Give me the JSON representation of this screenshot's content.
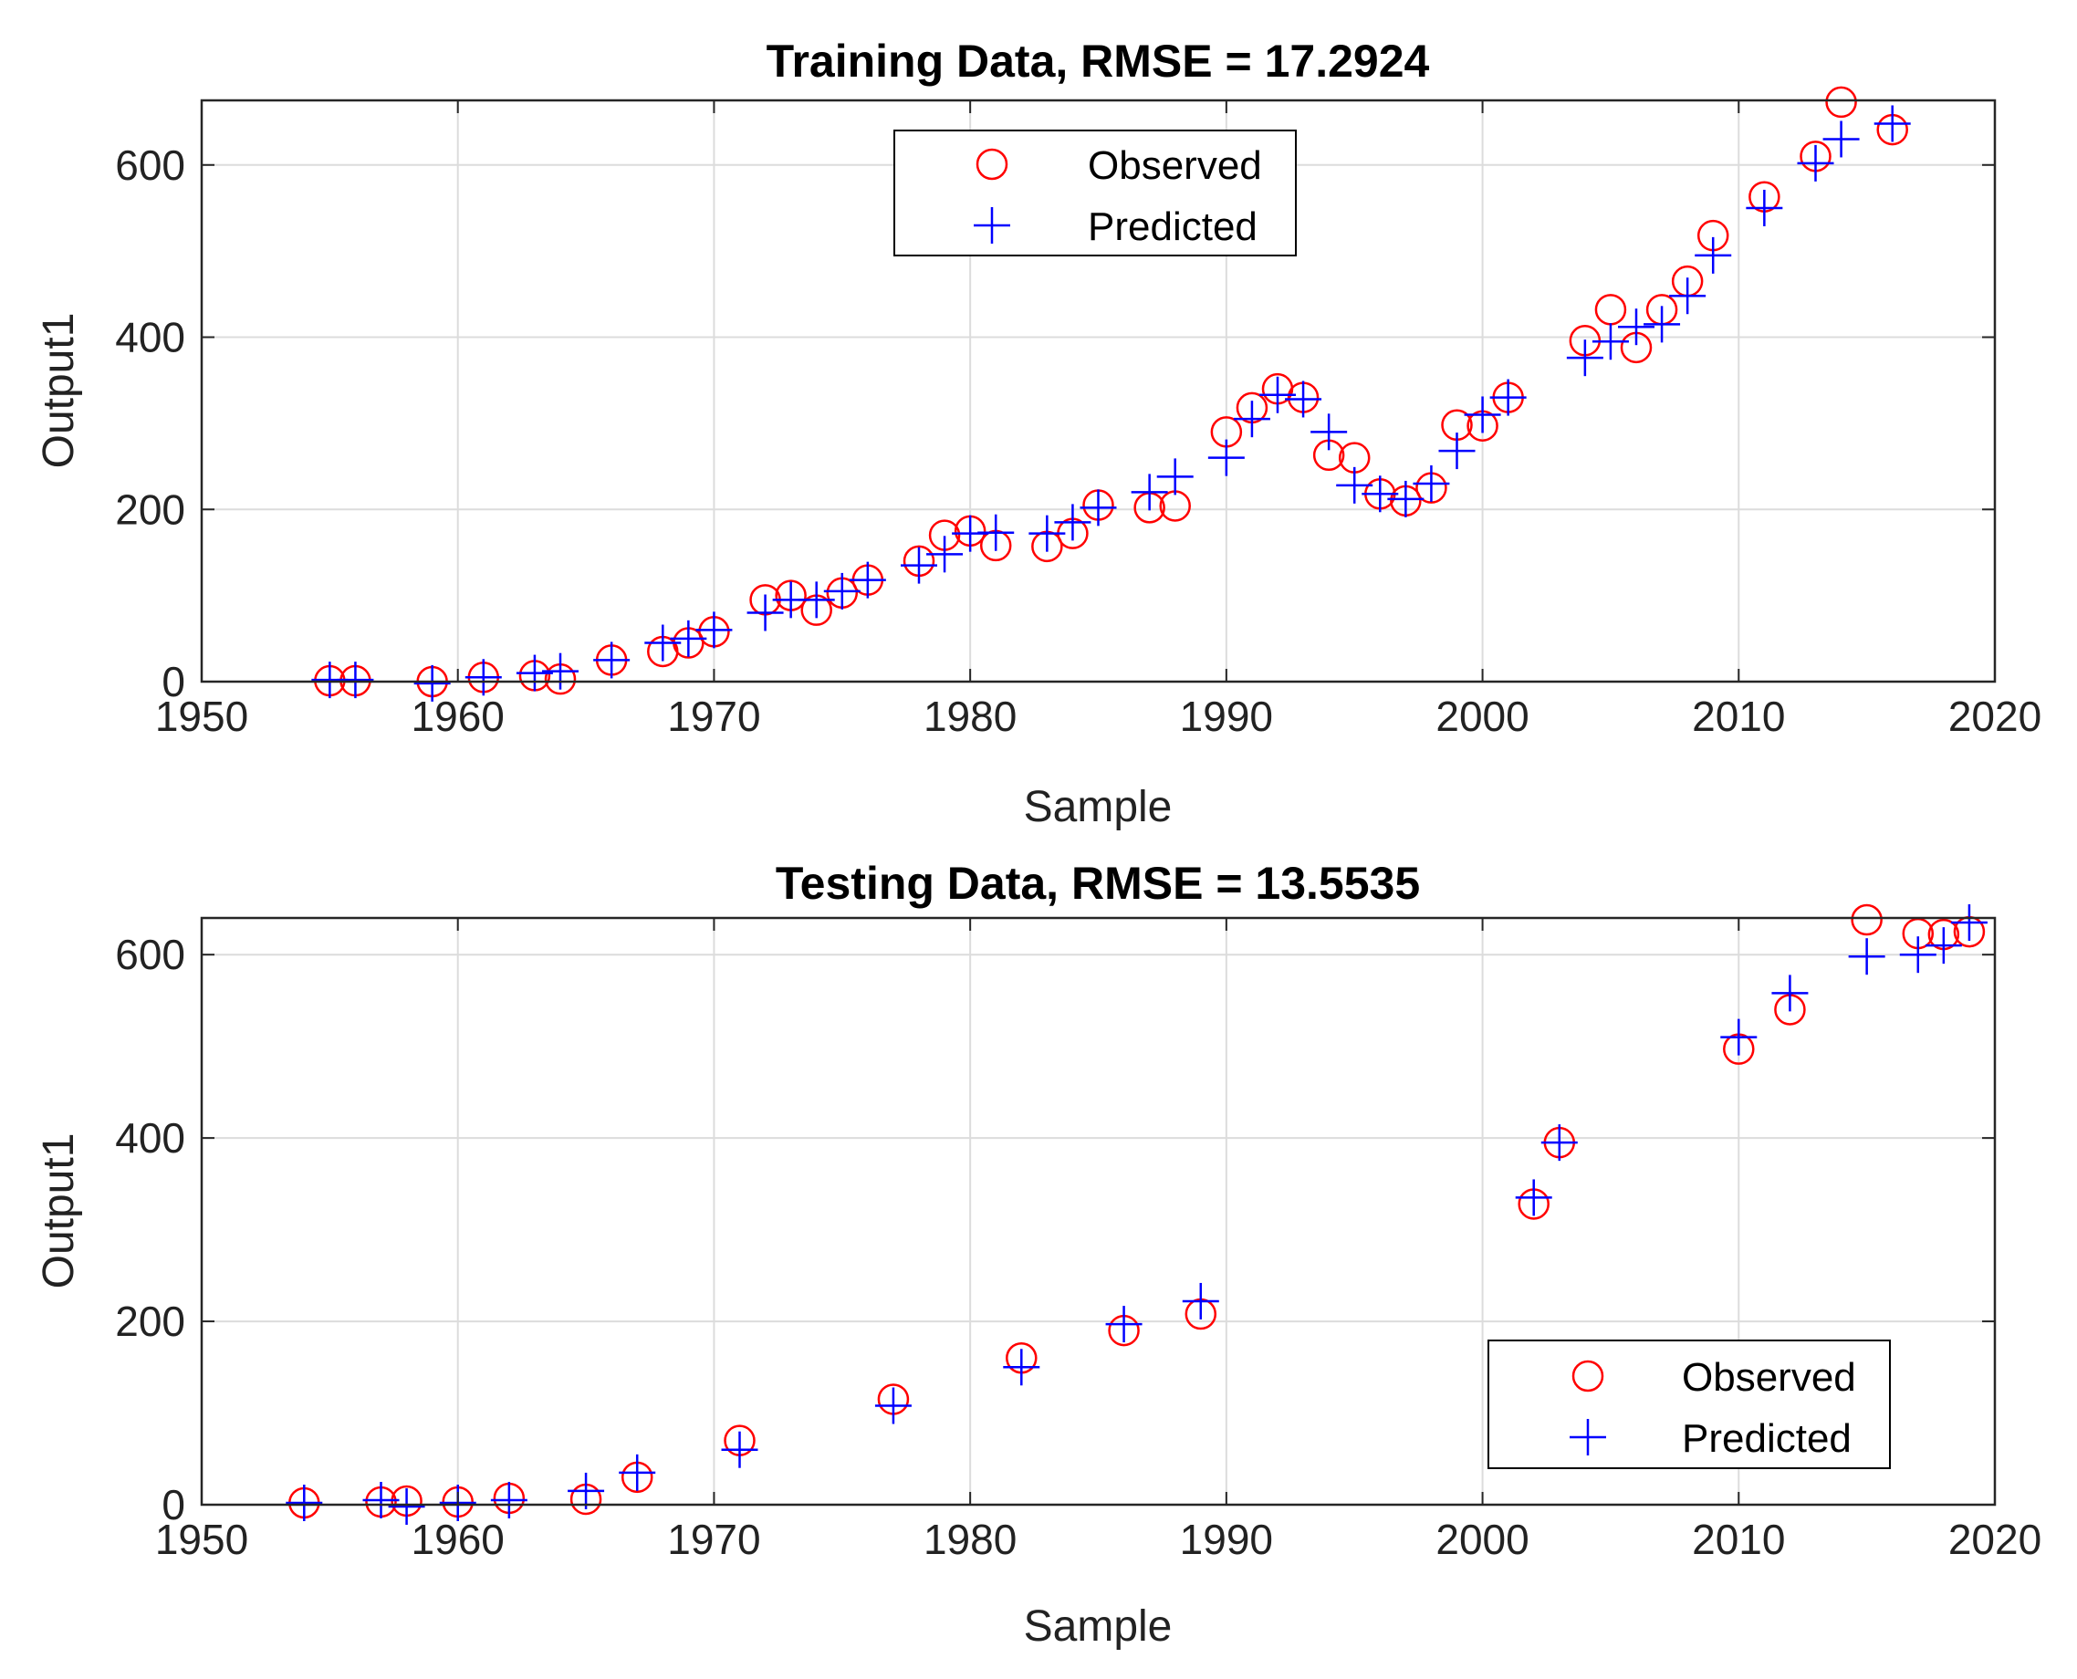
{
  "chart_data": [
    {
      "type": "scatter",
      "title": "Training Data, RMSE = 17.2924",
      "xlabel": "Sample",
      "ylabel": "Output1",
      "xlim": [
        1950,
        2020
      ],
      "ylim": [
        0,
        675
      ],
      "xticks": [
        1950,
        1960,
        1970,
        1980,
        1990,
        2000,
        2010,
        2020
      ],
      "yticks": [
        0,
        200,
        400,
        600
      ],
      "grid": true,
      "legend_position": "top-center",
      "series": [
        {
          "name": "Observed",
          "marker": "circle",
          "color": "#ff0000",
          "x": [
            1955,
            1956,
            1959,
            1961,
            1963,
            1964,
            1966,
            1968,
            1969,
            1970,
            1972,
            1973,
            1974,
            1975,
            1976,
            1978,
            1979,
            1980,
            1981,
            1983,
            1984,
            1985,
            1987,
            1988,
            1990,
            1991,
            1992,
            1993,
            1994,
            1995,
            1996,
            1997,
            1998,
            1999,
            2000,
            2001,
            2004,
            2005,
            2006,
            2007,
            2008,
            2009,
            2011,
            2013,
            2014,
            2016
          ],
          "y": [
            1,
            1,
            0,
            5,
            7,
            3,
            25,
            35,
            45,
            58,
            95,
            100,
            83,
            103,
            118,
            140,
            170,
            175,
            158,
            157,
            172,
            205,
            202,
            204,
            290,
            318,
            340,
            330,
            263,
            260,
            218,
            210,
            225,
            298,
            297,
            330,
            396,
            432,
            388,
            432,
            465,
            518,
            563,
            610,
            673,
            641
          ]
        },
        {
          "name": "Predicted",
          "marker": "plus",
          "color": "#0000ff",
          "x": [
            1955,
            1956,
            1959,
            1961,
            1963,
            1964,
            1966,
            1968,
            1969,
            1970,
            1972,
            1973,
            1974,
            1975,
            1976,
            1978,
            1979,
            1980,
            1981,
            1983,
            1984,
            1985,
            1987,
            1988,
            1990,
            1991,
            1992,
            1993,
            1994,
            1995,
            1996,
            1997,
            1998,
            1999,
            2000,
            2001,
            2004,
            2005,
            2006,
            2007,
            2008,
            2009,
            2011,
            2013,
            2014,
            2016
          ],
          "y": [
            2,
            2,
            -2,
            5,
            10,
            12,
            25,
            45,
            50,
            60,
            80,
            95,
            95,
            105,
            118,
            135,
            148,
            172,
            173,
            172,
            185,
            202,
            220,
            238,
            260,
            305,
            333,
            328,
            290,
            228,
            218,
            212,
            230,
            268,
            310,
            330,
            376,
            395,
            412,
            415,
            448,
            495,
            550,
            602,
            630,
            648
          ]
        }
      ]
    },
    {
      "type": "scatter",
      "title": "Testing Data, RMSE = 13.5535",
      "xlabel": "Sample",
      "ylabel": "Output1",
      "xlim": [
        1950,
        2020
      ],
      "ylim": [
        0,
        640
      ],
      "xticks": [
        1950,
        1960,
        1970,
        1980,
        1990,
        2000,
        2010,
        2020
      ],
      "yticks": [
        0,
        200,
        400,
        600
      ],
      "grid": true,
      "legend_position": "bottom-right",
      "series": [
        {
          "name": "Observed",
          "marker": "circle",
          "color": "#ff0000",
          "x": [
            1954,
            1957,
            1958,
            1960,
            1962,
            1965,
            1967,
            1971,
            1977,
            1982,
            1986,
            1989,
            2002,
            2003,
            2010,
            2012,
            2015,
            2017,
            2018,
            2019
          ],
          "y": [
            2,
            3,
            4,
            3,
            7,
            6,
            30,
            70,
            115,
            160,
            190,
            208,
            328,
            395,
            497,
            540,
            638,
            623,
            622,
            625
          ]
        },
        {
          "name": "Predicted",
          "marker": "plus",
          "color": "#0000ff",
          "x": [
            1954,
            1957,
            1958,
            1960,
            1962,
            1965,
            1967,
            1971,
            1977,
            1982,
            1986,
            1989,
            2002,
            2003,
            2010,
            2012,
            2015,
            2017,
            2018,
            2019
          ],
          "y": [
            2,
            5,
            -2,
            2,
            5,
            15,
            35,
            60,
            108,
            150,
            197,
            222,
            335,
            395,
            510,
            558,
            598,
            600,
            610,
            635
          ]
        }
      ]
    }
  ]
}
